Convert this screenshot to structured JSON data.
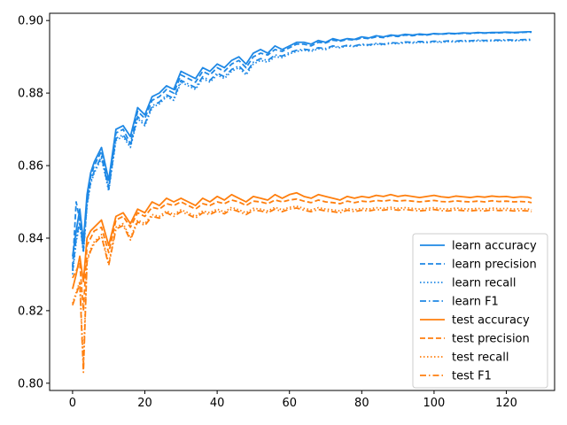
{
  "chart_data": {
    "type": "line",
    "title": "",
    "xlabel": "",
    "ylabel": "",
    "xlim": [
      -6.35,
      133.35
    ],
    "ylim": [
      0.798,
      0.902
    ],
    "x_ticks": [
      0,
      20,
      40,
      60,
      80,
      100,
      120
    ],
    "x_tick_labels": [
      "0",
      "20",
      "40",
      "60",
      "80",
      "100",
      "120"
    ],
    "y_ticks": [
      0.8,
      0.82,
      0.84,
      0.86,
      0.88,
      0.9
    ],
    "y_tick_labels": [
      "0.80",
      "0.82",
      "0.84",
      "0.86",
      "0.88",
      "0.90"
    ],
    "grid": false,
    "legend_position": "lower-right",
    "colors": {
      "learn": "#1e88e5",
      "test": "#ff7f0e"
    },
    "x": [
      0,
      1,
      2,
      3,
      4,
      5,
      6,
      8,
      10,
      12,
      14,
      16,
      18,
      20,
      22,
      24,
      26,
      28,
      30,
      32,
      34,
      36,
      38,
      40,
      42,
      44,
      46,
      48,
      50,
      52,
      54,
      56,
      58,
      60,
      62,
      64,
      66,
      68,
      70,
      72,
      74,
      76,
      78,
      80,
      82,
      84,
      86,
      88,
      90,
      92,
      94,
      96,
      98,
      100,
      102,
      104,
      106,
      108,
      110,
      112,
      114,
      116,
      118,
      120,
      122,
      124,
      126,
      127
    ],
    "series": [
      {
        "name": "learn accuracy",
        "group": "learn",
        "style": "solid",
        "values": [
          0.835,
          0.842,
          0.848,
          0.839,
          0.852,
          0.858,
          0.861,
          0.865,
          0.856,
          0.87,
          0.871,
          0.868,
          0.876,
          0.874,
          0.879,
          0.88,
          0.882,
          0.881,
          0.886,
          0.885,
          0.884,
          0.887,
          0.886,
          0.888,
          0.887,
          0.889,
          0.89,
          0.888,
          0.891,
          0.892,
          0.891,
          0.893,
          0.892,
          0.893,
          0.894,
          0.894,
          0.8935,
          0.8945,
          0.894,
          0.895,
          0.8945,
          0.895,
          0.8948,
          0.8955,
          0.8952,
          0.8958,
          0.8955,
          0.896,
          0.8958,
          0.8962,
          0.896,
          0.8963,
          0.8961,
          0.8964,
          0.8963,
          0.8965,
          0.8964,
          0.8966,
          0.8965,
          0.8967,
          0.8966,
          0.8967,
          0.8967,
          0.8968,
          0.8967,
          0.8968,
          0.8969,
          0.8969
        ]
      },
      {
        "name": "learn precision",
        "group": "learn",
        "style": "dashed",
        "values": [
          0.832,
          0.85,
          0.845,
          0.837,
          0.85,
          0.857,
          0.86,
          0.864,
          0.854,
          0.869,
          0.87,
          0.866,
          0.875,
          0.873,
          0.878,
          0.879,
          0.881,
          0.88,
          0.885,
          0.884,
          0.883,
          0.886,
          0.885,
          0.887,
          0.886,
          0.888,
          0.889,
          0.887,
          0.89,
          0.891,
          0.8905,
          0.892,
          0.8915,
          0.8925,
          0.8935,
          0.8935,
          0.893,
          0.894,
          0.8938,
          0.8946,
          0.8943,
          0.8948,
          0.8946,
          0.8952,
          0.895,
          0.8955,
          0.8953,
          0.8958,
          0.8956,
          0.896,
          0.8958,
          0.8961,
          0.896,
          0.8963,
          0.8962,
          0.8964,
          0.8963,
          0.8965,
          0.8964,
          0.8966,
          0.8965,
          0.8966,
          0.8966,
          0.8967,
          0.8966,
          0.8967,
          0.8968,
          0.8968
        ]
      },
      {
        "name": "learn recall",
        "group": "learn",
        "style": "dotted",
        "values": [
          0.83,
          0.839,
          0.844,
          0.836,
          0.849,
          0.855,
          0.858,
          0.862,
          0.853,
          0.867,
          0.868,
          0.865,
          0.873,
          0.871,
          0.876,
          0.877,
          0.879,
          0.878,
          0.883,
          0.882,
          0.881,
          0.884,
          0.883,
          0.885,
          0.884,
          0.886,
          0.887,
          0.885,
          0.888,
          0.889,
          0.8885,
          0.89,
          0.8898,
          0.8908,
          0.8915,
          0.8918,
          0.8915,
          0.8922,
          0.892,
          0.8928,
          0.8925,
          0.893,
          0.8928,
          0.8933,
          0.8931,
          0.8935,
          0.8933,
          0.8937,
          0.8936,
          0.8939,
          0.8938,
          0.894,
          0.8939,
          0.8941,
          0.894,
          0.8942,
          0.8941,
          0.8943,
          0.8942,
          0.8944,
          0.8943,
          0.8944,
          0.8944,
          0.8945,
          0.8944,
          0.8945,
          0.8946,
          0.8946
        ]
      },
      {
        "name": "learn F1",
        "group": "learn",
        "style": "dashdot",
        "values": [
          0.831,
          0.84,
          0.8445,
          0.8365,
          0.8495,
          0.8555,
          0.8585,
          0.8625,
          0.8535,
          0.8675,
          0.8685,
          0.8655,
          0.8735,
          0.8715,
          0.8765,
          0.8775,
          0.8795,
          0.8785,
          0.8835,
          0.8825,
          0.8815,
          0.8845,
          0.8835,
          0.8855,
          0.8845,
          0.8865,
          0.8875,
          0.8855,
          0.8885,
          0.8895,
          0.889,
          0.8905,
          0.8902,
          0.8912,
          0.8918,
          0.8921,
          0.8918,
          0.8925,
          0.8923,
          0.893,
          0.8927,
          0.8932,
          0.893,
          0.8935,
          0.8933,
          0.8937,
          0.8935,
          0.8939,
          0.8938,
          0.8941,
          0.894,
          0.8942,
          0.8941,
          0.8943,
          0.8942,
          0.8944,
          0.8943,
          0.8945,
          0.8944,
          0.8946,
          0.8945,
          0.8946,
          0.8946,
          0.8947,
          0.8946,
          0.8947,
          0.8948,
          0.8948
        ]
      },
      {
        "name": "test accuracy",
        "group": "test",
        "style": "solid",
        "values": [
          0.826,
          0.83,
          0.835,
          0.828,
          0.84,
          0.842,
          0.843,
          0.845,
          0.838,
          0.846,
          0.847,
          0.844,
          0.848,
          0.847,
          0.85,
          0.849,
          0.851,
          0.85,
          0.851,
          0.85,
          0.849,
          0.851,
          0.85,
          0.8515,
          0.8505,
          0.852,
          0.851,
          0.85,
          0.8515,
          0.851,
          0.8505,
          0.852,
          0.851,
          0.852,
          0.8525,
          0.8515,
          0.851,
          0.852,
          0.8515,
          0.851,
          0.8505,
          0.8515,
          0.851,
          0.8515,
          0.8512,
          0.8518,
          0.8515,
          0.852,
          0.8515,
          0.8518,
          0.8515,
          0.8512,
          0.8515,
          0.8518,
          0.8514,
          0.8512,
          0.8516,
          0.8514,
          0.8512,
          0.8515,
          0.8513,
          0.8516,
          0.8514,
          0.8515,
          0.8512,
          0.8514,
          0.8513,
          0.851
        ]
      },
      {
        "name": "test precision",
        "group": "test",
        "style": "dashed",
        "values": [
          0.829,
          0.831,
          0.833,
          0.82,
          0.838,
          0.84,
          0.842,
          0.843,
          0.836,
          0.845,
          0.846,
          0.843,
          0.847,
          0.846,
          0.8485,
          0.848,
          0.8495,
          0.849,
          0.85,
          0.849,
          0.848,
          0.8495,
          0.849,
          0.85,
          0.8495,
          0.8505,
          0.85,
          0.849,
          0.8502,
          0.85,
          0.8495,
          0.8505,
          0.85,
          0.8505,
          0.8508,
          0.8502,
          0.8498,
          0.8505,
          0.85,
          0.8498,
          0.8495,
          0.8502,
          0.8498,
          0.8502,
          0.85,
          0.8504,
          0.8502,
          0.8505,
          0.8502,
          0.8504,
          0.8502,
          0.85,
          0.8502,
          0.8504,
          0.8501,
          0.85,
          0.8503,
          0.8501,
          0.85,
          0.8502,
          0.85,
          0.8503,
          0.8501,
          0.8502,
          0.85,
          0.8501,
          0.85,
          0.8498
        ]
      },
      {
        "name": "test recall",
        "group": "test",
        "style": "dotted",
        "values": [
          0.822,
          0.825,
          0.828,
          0.805,
          0.834,
          0.837,
          0.839,
          0.841,
          0.833,
          0.843,
          0.844,
          0.84,
          0.845,
          0.844,
          0.8465,
          0.846,
          0.8475,
          0.8465,
          0.8478,
          0.847,
          0.846,
          0.8475,
          0.847,
          0.848,
          0.8472,
          0.8485,
          0.8478,
          0.847,
          0.8482,
          0.848,
          0.8475,
          0.8485,
          0.8478,
          0.8485,
          0.8488,
          0.8482,
          0.8478,
          0.8484,
          0.848,
          0.8478,
          0.8475,
          0.8482,
          0.8478,
          0.8482,
          0.848,
          0.8484,
          0.8482,
          0.8485,
          0.8482,
          0.8484,
          0.8482,
          0.848,
          0.8482,
          0.8484,
          0.8481,
          0.848,
          0.8483,
          0.8481,
          0.848,
          0.8482,
          0.848,
          0.8483,
          0.8481,
          0.8482,
          0.848,
          0.8481,
          0.848,
          0.8478
        ]
      },
      {
        "name": "test F1",
        "group": "test",
        "style": "dashdot",
        "values": [
          0.8215,
          0.8245,
          0.8275,
          0.803,
          0.8335,
          0.8365,
          0.8385,
          0.8405,
          0.8325,
          0.8425,
          0.8435,
          0.8395,
          0.8445,
          0.8435,
          0.846,
          0.8455,
          0.847,
          0.846,
          0.8473,
          0.8465,
          0.8455,
          0.847,
          0.8465,
          0.8475,
          0.8467,
          0.848,
          0.8473,
          0.8465,
          0.8477,
          0.8475,
          0.847,
          0.848,
          0.8473,
          0.848,
          0.8483,
          0.8477,
          0.8473,
          0.8479,
          0.8475,
          0.8473,
          0.847,
          0.8477,
          0.8473,
          0.8477,
          0.8475,
          0.8479,
          0.8477,
          0.848,
          0.8477,
          0.8479,
          0.8477,
          0.8475,
          0.8477,
          0.8479,
          0.8476,
          0.8475,
          0.8478,
          0.8476,
          0.8475,
          0.8477,
          0.8475,
          0.8478,
          0.8476,
          0.8477,
          0.8475,
          0.8476,
          0.8475,
          0.8473
        ]
      }
    ]
  }
}
